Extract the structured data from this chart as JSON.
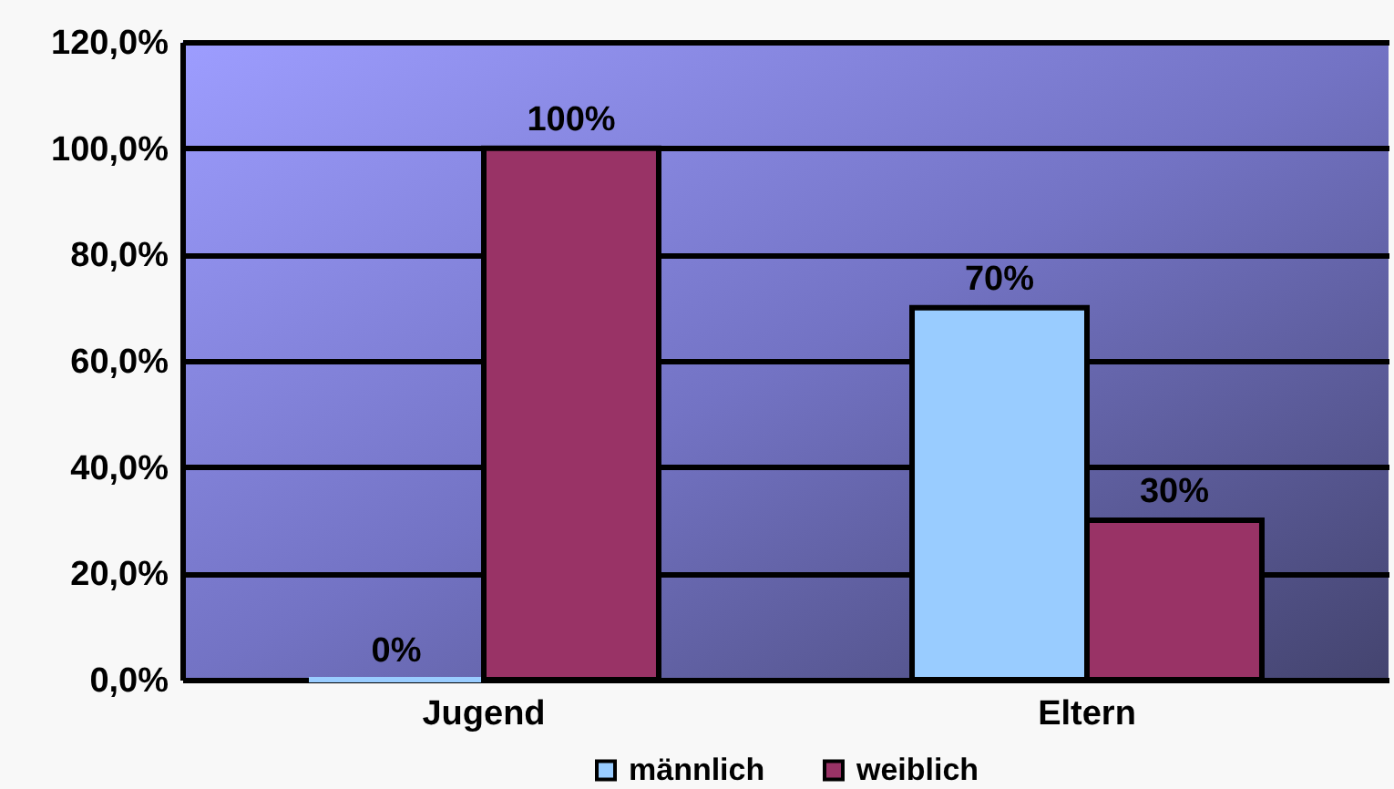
{
  "chart_data": {
    "type": "bar",
    "categories": [
      "Jugend",
      "Eltern"
    ],
    "series": [
      {
        "name": "männlich",
        "color": "#99ccff",
        "values": [
          0,
          70
        ],
        "value_labels": [
          "0%",
          "70%"
        ]
      },
      {
        "name": "weiblich",
        "color": "#993366",
        "values": [
          100,
          30
        ],
        "value_labels": [
          "100%",
          "30%"
        ]
      }
    ],
    "ylim": [
      0,
      120
    ],
    "yticks": [
      {
        "value": 0,
        "label": "0,0%"
      },
      {
        "value": 20,
        "label": "20,0%"
      },
      {
        "value": 40,
        "label": "40,0%"
      },
      {
        "value": 60,
        "label": "60,0%"
      },
      {
        "value": 80,
        "label": "80,0%"
      },
      {
        "value": 100,
        "label": "100,0%"
      },
      {
        "value": 120,
        "label": "120,0%"
      }
    ],
    "grid": true,
    "legend": "bottom"
  }
}
